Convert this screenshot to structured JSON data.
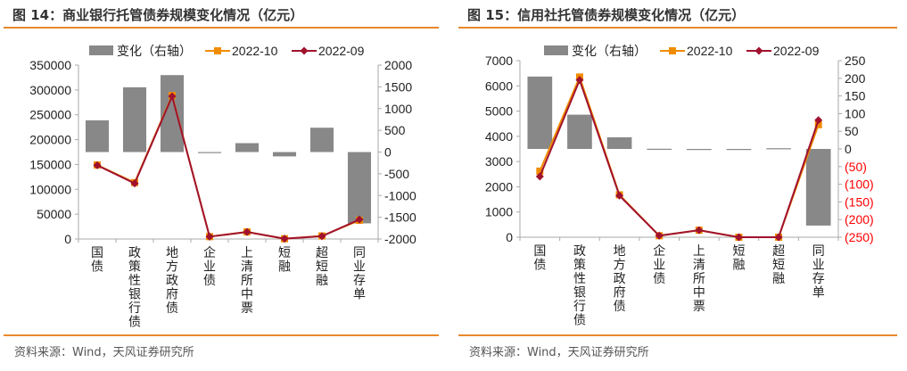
{
  "chart_data": [
    {
      "type": "bar+line",
      "title": "图 14：商业银行托管债券规模变化情况（亿元）",
      "source": "资料来源：Wind，天风证券研究所",
      "categories": [
        "国债",
        "政策性银行债",
        "地方政府债",
        "企业债",
        "上清所中票",
        "短融",
        "超短融",
        "同业存单"
      ],
      "left_axis": {
        "min": 0,
        "max": 350000,
        "ticks": [
          "0",
          "50000",
          "100000",
          "150000",
          "200000",
          "250000",
          "300000",
          "350000"
        ],
        "step": 50000
      },
      "right_axis": {
        "min": -2000,
        "max": 2000,
        "ticks": [
          "-2000",
          "-1500",
          "-1000",
          "-500",
          "0",
          "500",
          "1000",
          "1500",
          "2000"
        ],
        "step": 500,
        "negative_style": "minus"
      },
      "series": [
        {
          "name": "变化（右轴）",
          "kind": "bar",
          "axis": "right",
          "color": "#888888",
          "values": [
            730,
            1490,
            1770,
            -20,
            205,
            -100,
            560,
            -1640
          ]
        },
        {
          "name": "2022-10",
          "kind": "line",
          "marker": "square",
          "axis": "left",
          "color": "#f08c00",
          "values": [
            149000,
            113500,
            289000,
            4800,
            14300,
            500,
            6200,
            37600
          ]
        },
        {
          "name": "2022-09",
          "kind": "line",
          "marker": "diamond",
          "axis": "left",
          "color": "#a0122e",
          "values": [
            148300,
            112000,
            287200,
            4800,
            14100,
            600,
            5600,
            39200
          ]
        }
      ]
    },
    {
      "type": "bar+line",
      "title": "图 15：信用社托管债券规模变化情况（亿元）",
      "source": "资料来源：Wind，天风证券研究所",
      "categories": [
        "国债",
        "政策性银行债",
        "地方政府债",
        "企业债",
        "上清所中票",
        "短融",
        "超短融",
        "同业存单"
      ],
      "left_axis": {
        "min": 0,
        "max": 7000,
        "ticks": [
          "0",
          "1000",
          "2000",
          "3000",
          "4000",
          "5000",
          "6000",
          "7000"
        ],
        "step": 1000
      },
      "right_axis": {
        "min": -250,
        "max": 250,
        "ticks": [
          "(250)",
          "(200)",
          "(150)",
          "(100)",
          "(50)",
          "0",
          "50",
          "100",
          "150",
          "200",
          "250"
        ],
        "step": 50,
        "negative_style": "parentheses-red",
        "negative_color": "#ff0000"
      },
      "series": [
        {
          "name": "变化（右轴）",
          "kind": "bar",
          "axis": "right",
          "color": "#888888",
          "values": [
            205,
            97,
            33,
            0.5,
            -3,
            -1,
            2,
            -217
          ]
        },
        {
          "name": "2022-10",
          "kind": "line",
          "marker": "square",
          "axis": "left",
          "color": "#f08c00",
          "values": [
            2620,
            6350,
            1680,
            60,
            280,
            0,
            0,
            4460
          ]
        },
        {
          "name": "2022-09",
          "kind": "line",
          "marker": "diamond",
          "axis": "left",
          "color": "#a0122e",
          "values": [
            2410,
            6230,
            1650,
            60,
            280,
            0,
            0,
            4640
          ]
        }
      ]
    }
  ]
}
